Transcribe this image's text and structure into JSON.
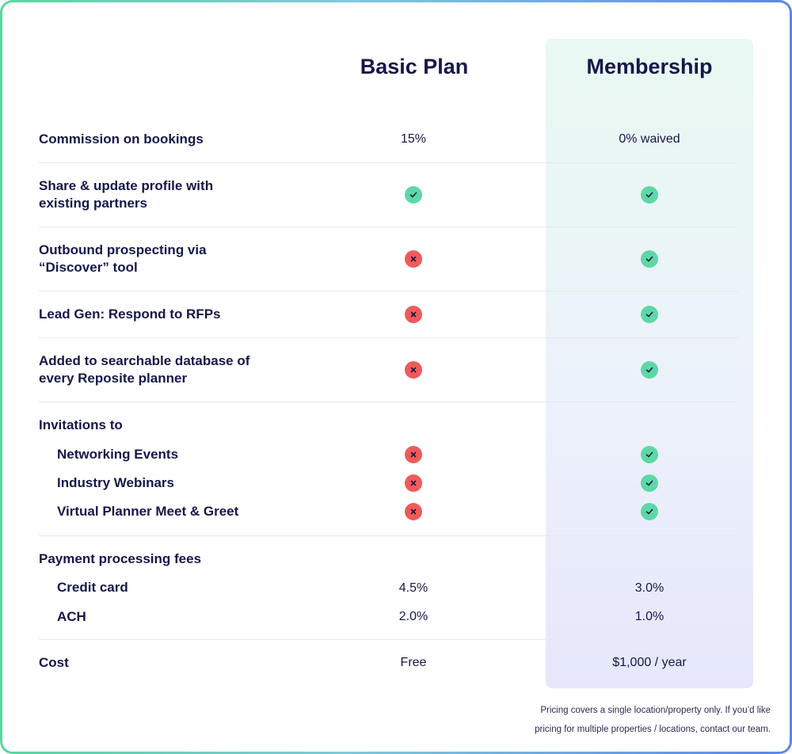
{
  "plans": {
    "basic": "Basic Plan",
    "membership": "Membership"
  },
  "rows": {
    "commission": {
      "label": "Commission on bookings",
      "basic": "15%",
      "membership": "0% waived"
    },
    "share": {
      "label_line1": "Share & update profile with",
      "label_line2": "existing partners",
      "basic": "check",
      "membership": "check"
    },
    "outbound": {
      "label_line1": "Outbound prospecting via",
      "label_line2": "“Discover” tool",
      "basic": "cross",
      "membership": "check"
    },
    "leadgen": {
      "label": "Lead Gen: Respond to RFPs",
      "basic": "cross",
      "membership": "check"
    },
    "database": {
      "label_line1": "Added to searchable database of",
      "label_line2": "every Reposite planner",
      "basic": "cross",
      "membership": "check"
    },
    "invitations": {
      "label": "Invitations to",
      "items": [
        {
          "label": "Networking Events",
          "basic": "cross",
          "membership": "check"
        },
        {
          "label": "Industry Webinars",
          "basic": "cross",
          "membership": "check"
        },
        {
          "label": "Virtual Planner Meet & Greet",
          "basic": "cross",
          "membership": "check"
        }
      ]
    },
    "payment": {
      "label": "Payment processing fees",
      "items": [
        {
          "label": "Credit card",
          "basic": "4.5%",
          "membership": "3.0%"
        },
        {
          "label": "ACH",
          "basic": "2.0%",
          "membership": "1.0%"
        }
      ]
    },
    "cost": {
      "label": "Cost",
      "basic": "Free",
      "membership": "$1,000 / year"
    }
  },
  "footnote": {
    "line1": "Pricing covers a single location/property only. If you’d like",
    "line2": "pricing for multiple properties / locations, contact our team."
  },
  "colors": {
    "check": "#5dd8a4",
    "cross": "#ef5b5b",
    "text": "#16174a"
  }
}
